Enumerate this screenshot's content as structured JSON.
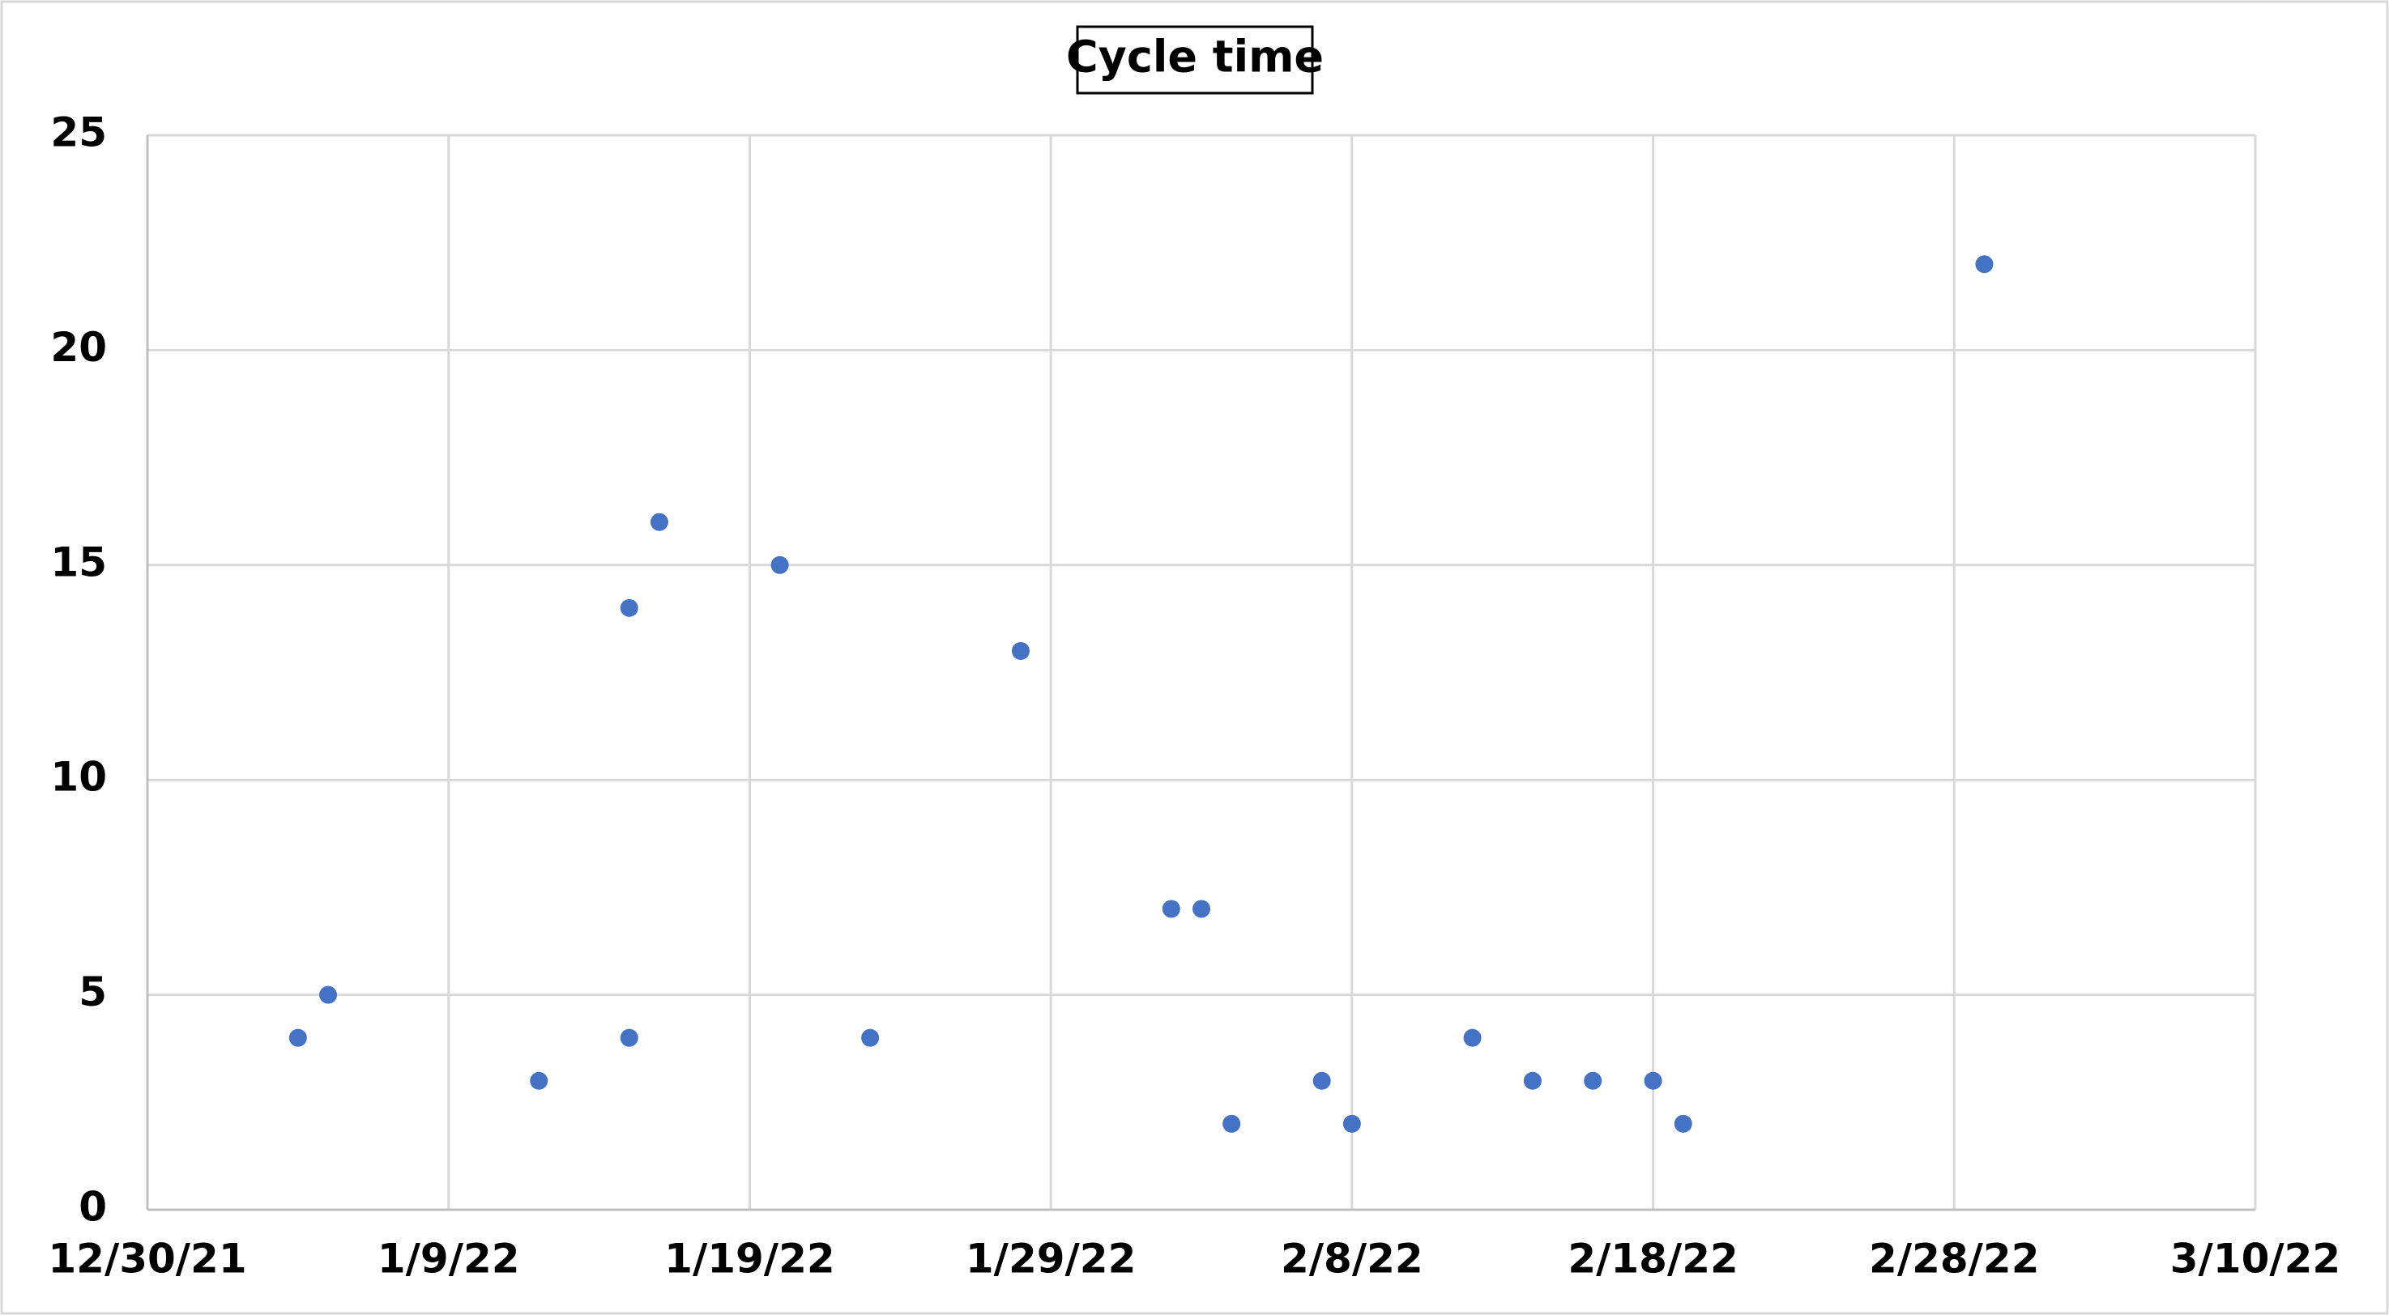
{
  "chart_data": {
    "type": "scatter",
    "title": "Cycle time",
    "series": [
      {
        "color": "#4472c4",
        "x": [
          "1/4/22",
          "1/5/22",
          "1/12/22",
          "1/15/22",
          "1/15/22",
          "1/16/22",
          "1/20/22",
          "1/23/22",
          "1/28/22",
          "2/2/22",
          "2/3/22",
          "2/4/22",
          "2/7/22",
          "2/8/22",
          "2/12/22",
          "2/14/22",
          "2/16/22",
          "2/18/22",
          "2/19/22",
          "3/1/22"
        ],
        "values": [
          4,
          5,
          3,
          14,
          4,
          16,
          15,
          4,
          13,
          7,
          7,
          2,
          3,
          2,
          4,
          3,
          3,
          3,
          2,
          22
        ]
      }
    ],
    "xlim": [
      "12/30/21",
      "3/10/22"
    ],
    "xticks": [
      "12/30/21",
      "1/9/22",
      "1/19/22",
      "1/29/22",
      "2/8/22",
      "2/18/22",
      "2/28/22",
      "3/10/22"
    ],
    "ylim": [
      0,
      25
    ],
    "yticks": [
      0,
      5,
      10,
      15,
      20,
      25
    ],
    "grid": true
  }
}
